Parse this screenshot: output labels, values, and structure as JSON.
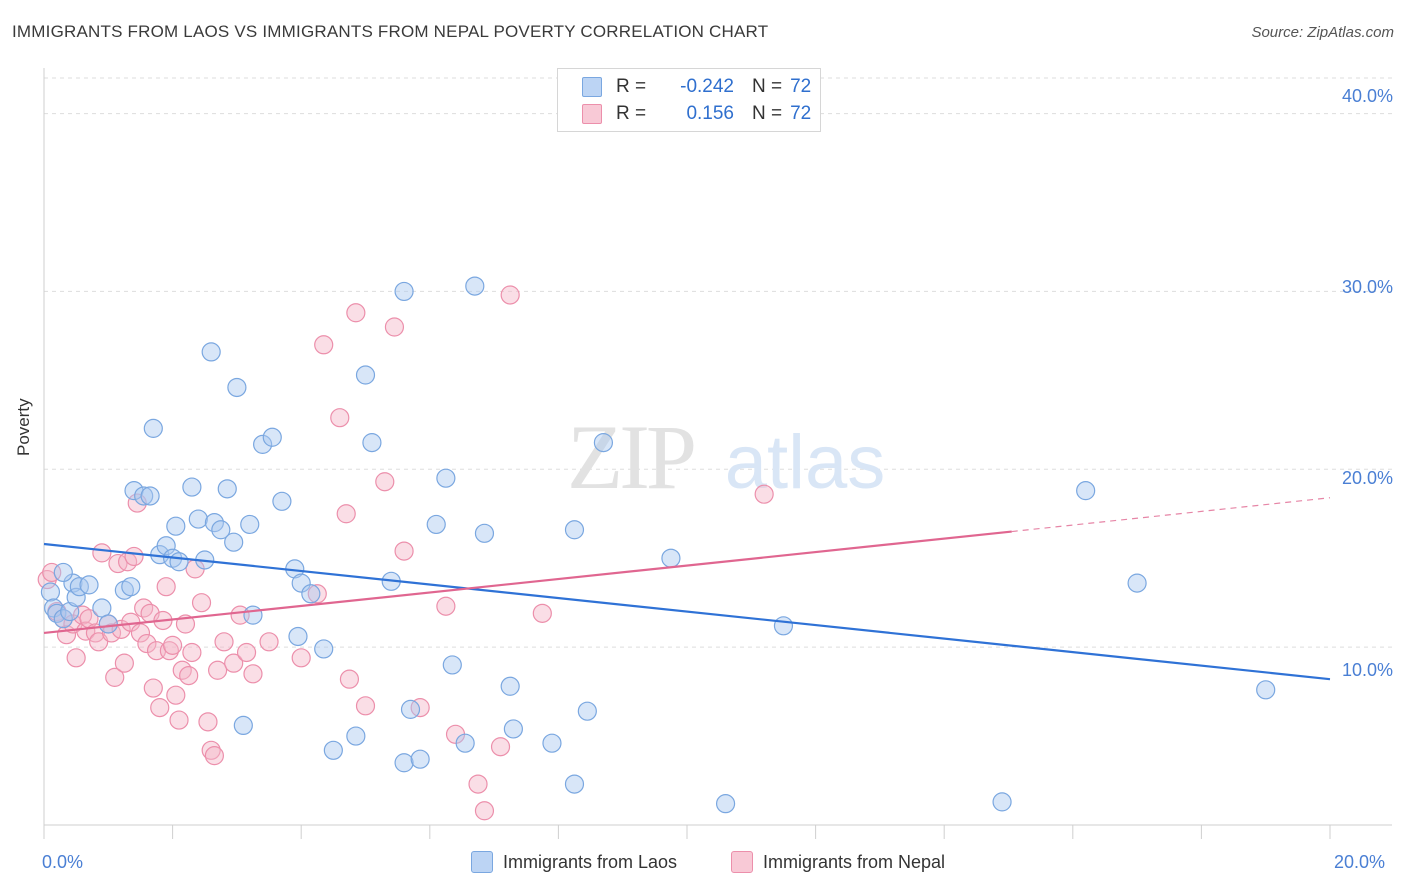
{
  "header": {
    "title": "IMMIGRANTS FROM LAOS VS IMMIGRANTS FROM NEPAL POVERTY CORRELATION CHART",
    "source": "Source: ZipAtlas.com"
  },
  "watermark": {
    "part1": "ZIP",
    "part2": "atlas"
  },
  "legend_top": {
    "rows": [
      {
        "r_label": "R =",
        "r_value": "-0.242",
        "n_label": "N =",
        "n_value": "72"
      },
      {
        "r_label": "R =",
        "r_value": "0.156",
        "n_label": "N =",
        "n_value": "72"
      }
    ]
  },
  "colors": {
    "laos_fill": "#a9c8f0",
    "laos_stroke": "#7aa7e0",
    "laos_line": "#2f72d6",
    "nepal_fill": "#f5b6c8",
    "nepal_stroke": "#ec8fab",
    "nepal_line": "#e06690",
    "tick_text": "#4a7fd4",
    "grid": "#dddddd"
  },
  "chart_data": {
    "type": "scatter",
    "title": "IMMIGRANTS FROM LAOS VS IMMIGRANTS FROM NEPAL POVERTY CORRELATION CHART",
    "xlabel": "",
    "ylabel": "Poverty",
    "xlim": [
      0,
      20
    ],
    "ylim": [
      0,
      42
    ],
    "x_ticks_labels": [
      "0.0%",
      "20.0%"
    ],
    "y_ticks": [
      10,
      20,
      30,
      40
    ],
    "y_ticks_labels": [
      "10.0%",
      "20.0%",
      "30.0%",
      "40.0%"
    ],
    "grid": "horizontal dashed",
    "legend_position": "bottom",
    "series": [
      {
        "name": "Immigrants from Laos",
        "color": "#a9c8f0",
        "r": -0.242,
        "n": 72,
        "trend": {
          "x": [
            0,
            20
          ],
          "y": [
            15.8,
            8.2
          ]
        },
        "points": [
          [
            0.1,
            13.1
          ],
          [
            0.15,
            12.2
          ],
          [
            0.2,
            11.9
          ],
          [
            0.3,
            11.6
          ],
          [
            0.4,
            12.0
          ],
          [
            0.45,
            13.6
          ],
          [
            0.5,
            12.8
          ],
          [
            0.55,
            13.4
          ],
          [
            0.3,
            14.2
          ],
          [
            0.7,
            13.5
          ],
          [
            0.9,
            12.2
          ],
          [
            1.0,
            11.3
          ],
          [
            1.25,
            13.2
          ],
          [
            1.35,
            13.4
          ],
          [
            1.4,
            18.8
          ],
          [
            1.55,
            18.5
          ],
          [
            1.65,
            18.5
          ],
          [
            1.7,
            22.3
          ],
          [
            1.8,
            15.2
          ],
          [
            1.9,
            15.7
          ],
          [
            2.0,
            15.0
          ],
          [
            2.05,
            16.8
          ],
          [
            2.1,
            14.8
          ],
          [
            2.3,
            19.0
          ],
          [
            2.4,
            17.2
          ],
          [
            2.5,
            14.9
          ],
          [
            2.6,
            26.6
          ],
          [
            2.65,
            17.0
          ],
          [
            2.75,
            16.6
          ],
          [
            2.85,
            18.9
          ],
          [
            2.95,
            15.9
          ],
          [
            3.0,
            24.6
          ],
          [
            3.1,
            5.6
          ],
          [
            3.2,
            16.9
          ],
          [
            3.25,
            11.8
          ],
          [
            3.4,
            21.4
          ],
          [
            3.55,
            21.8
          ],
          [
            3.7,
            18.2
          ],
          [
            3.9,
            14.4
          ],
          [
            3.95,
            10.6
          ],
          [
            4.0,
            13.6
          ],
          [
            4.15,
            13.0
          ],
          [
            4.35,
            9.9
          ],
          [
            4.5,
            4.2
          ],
          [
            4.85,
            5.0
          ],
          [
            5.0,
            25.3
          ],
          [
            5.1,
            21.5
          ],
          [
            5.4,
            13.7
          ],
          [
            5.6,
            30.0
          ],
          [
            5.6,
            3.5
          ],
          [
            5.7,
            6.5
          ],
          [
            5.85,
            3.7
          ],
          [
            6.1,
            16.9
          ],
          [
            6.25,
            19.5
          ],
          [
            6.35,
            9.0
          ],
          [
            6.55,
            4.6
          ],
          [
            6.7,
            30.3
          ],
          [
            6.85,
            16.4
          ],
          [
            7.25,
            7.8
          ],
          [
            7.3,
            5.4
          ],
          [
            7.9,
            4.6
          ],
          [
            8.25,
            16.6
          ],
          [
            8.25,
            2.3
          ],
          [
            8.45,
            6.4
          ],
          [
            8.7,
            21.5
          ],
          [
            9.75,
            15.0
          ],
          [
            10.6,
            1.2
          ],
          [
            11.5,
            11.2
          ],
          [
            14.9,
            1.3
          ],
          [
            16.2,
            18.8
          ],
          [
            17.0,
            13.6
          ],
          [
            19.0,
            7.6
          ]
        ]
      },
      {
        "name": "Immigrants from Nepal",
        "color": "#f5b6c8",
        "r": 0.156,
        "n": 72,
        "trend": {
          "x": [
            0,
            15.05
          ],
          "y": [
            10.8,
            16.5
          ],
          "dashed_to": {
            "x": 20,
            "y": 18.4
          }
        },
        "points": [
          [
            0.05,
            13.8
          ],
          [
            0.12,
            14.2
          ],
          [
            0.2,
            12.0
          ],
          [
            0.3,
            11.6
          ],
          [
            0.35,
            10.7
          ],
          [
            0.45,
            11.3
          ],
          [
            0.5,
            9.4
          ],
          [
            0.6,
            11.8
          ],
          [
            0.65,
            10.9
          ],
          [
            0.7,
            11.6
          ],
          [
            0.8,
            10.8
          ],
          [
            0.85,
            10.3
          ],
          [
            0.9,
            15.3
          ],
          [
            1.0,
            11.3
          ],
          [
            1.05,
            10.8
          ],
          [
            1.1,
            8.3
          ],
          [
            1.15,
            14.7
          ],
          [
            1.2,
            11.0
          ],
          [
            1.25,
            9.1
          ],
          [
            1.3,
            14.8
          ],
          [
            1.35,
            11.4
          ],
          [
            1.4,
            15.1
          ],
          [
            1.45,
            18.1
          ],
          [
            1.5,
            10.8
          ],
          [
            1.55,
            12.2
          ],
          [
            1.6,
            10.2
          ],
          [
            1.65,
            11.9
          ],
          [
            1.7,
            7.7
          ],
          [
            1.75,
            9.8
          ],
          [
            1.8,
            6.6
          ],
          [
            1.85,
            11.5
          ],
          [
            1.9,
            13.4
          ],
          [
            1.95,
            9.8
          ],
          [
            2.0,
            10.1
          ],
          [
            2.05,
            7.3
          ],
          [
            2.1,
            5.9
          ],
          [
            2.15,
            8.7
          ],
          [
            2.2,
            11.3
          ],
          [
            2.25,
            8.4
          ],
          [
            2.3,
            9.7
          ],
          [
            2.35,
            14.4
          ],
          [
            2.45,
            12.5
          ],
          [
            2.55,
            5.8
          ],
          [
            2.6,
            4.2
          ],
          [
            2.65,
            3.9
          ],
          [
            2.7,
            8.7
          ],
          [
            2.8,
            10.3
          ],
          [
            2.95,
            9.1
          ],
          [
            3.05,
            11.8
          ],
          [
            3.15,
            9.7
          ],
          [
            3.25,
            8.5
          ],
          [
            3.5,
            10.3
          ],
          [
            4.0,
            9.4
          ],
          [
            4.25,
            13.0
          ],
          [
            4.35,
            27.0
          ],
          [
            4.6,
            22.9
          ],
          [
            4.7,
            17.5
          ],
          [
            4.75,
            8.2
          ],
          [
            4.85,
            28.8
          ],
          [
            5.0,
            6.7
          ],
          [
            5.3,
            19.3
          ],
          [
            5.45,
            28.0
          ],
          [
            5.6,
            15.4
          ],
          [
            5.85,
            6.6
          ],
          [
            6.25,
            12.3
          ],
          [
            6.4,
            5.1
          ],
          [
            6.75,
            2.3
          ],
          [
            6.85,
            0.8
          ],
          [
            7.1,
            4.4
          ],
          [
            7.25,
            29.8
          ],
          [
            7.75,
            11.9
          ],
          [
            11.2,
            18.6
          ]
        ]
      }
    ]
  },
  "bottom_legend": {
    "laos_label": "Immigrants from Laos",
    "nepal_label": "Immigrants from Nepal"
  }
}
